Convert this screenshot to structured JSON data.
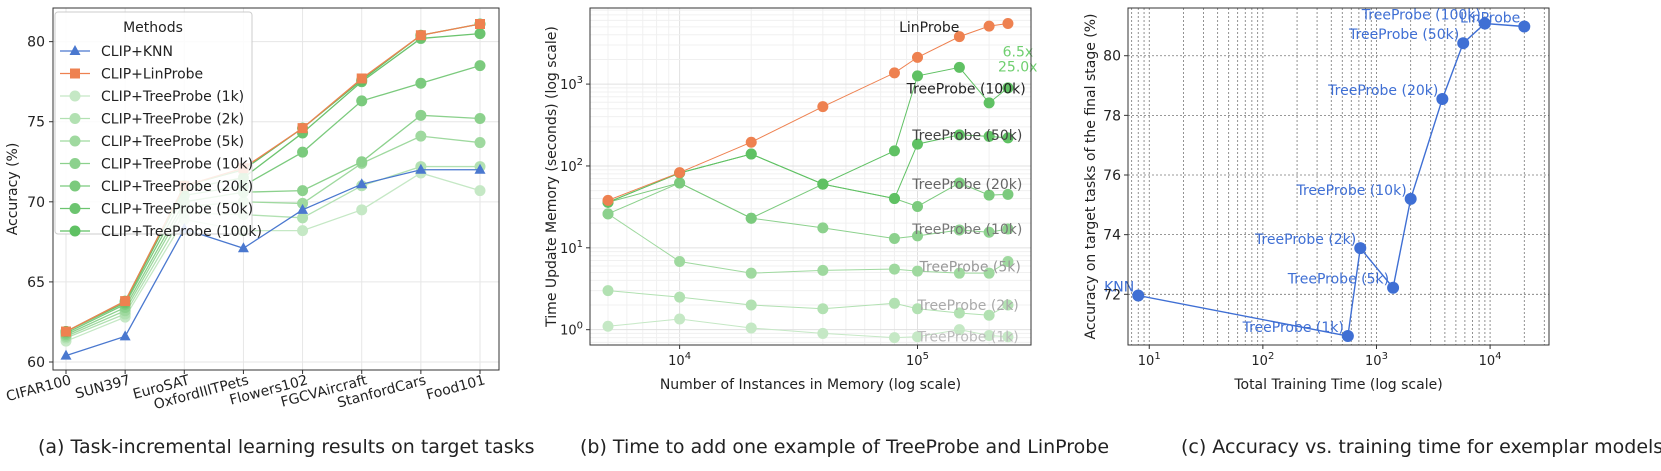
{
  "colors": {
    "knn": "#4a78cf",
    "linprobe": "#ee8150",
    "tree_dark": "#5fc163",
    "tree_mid": "#8fd38f",
    "tree_light": "#c5e8c5",
    "tree_ann_grey": "#999999",
    "green_ann": "#6fcf6f",
    "blue_curve": "#3f6fd4"
  },
  "captions": {
    "a": "(a) Task-incremental learning results on target tasks",
    "b": "(b) Time to add one example of TreeProbe and LinProbe",
    "c": "(c) Accuracy vs. training time for exemplar models"
  },
  "chart_data": [
    {
      "id": "a",
      "type": "line",
      "title": "",
      "xlabel": "",
      "ylabel": "Accuracy (%)",
      "ylim": [
        59.5,
        82.1
      ],
      "yticks": [
        60,
        65,
        70,
        75,
        80
      ],
      "grid": true,
      "legend_title": "Methods",
      "legend_position": "top-left",
      "categories": [
        "CIFAR100",
        "SUN397",
        "EuroSAT",
        "OxfordIIITPets",
        "Flowers102",
        "FGCVAircraft",
        "StanfordCars",
        "Food101"
      ],
      "series": [
        {
          "name": "CLIP+KNN",
          "color": "#4a78cf",
          "marker": "triangle",
          "values": [
            60.4,
            61.6,
            68.3,
            67.1,
            69.5,
            71.1,
            72.0,
            72.0
          ]
        },
        {
          "name": "CLIP+LinProbe",
          "color": "#ee8150",
          "marker": "square",
          "values": [
            61.9,
            63.8,
            71.0,
            72.1,
            74.6,
            77.7,
            80.4,
            81.1
          ]
        },
        {
          "name": "CLIP+TreeProbe (1k)",
          "color": "#c5e8c5",
          "marker": "circle",
          "values": [
            61.3,
            62.8,
            68.9,
            68.2,
            68.2,
            69.5,
            71.8,
            70.7
          ]
        },
        {
          "name": "CLIP+TreeProbe (2k)",
          "color": "#b2e1b2",
          "marker": "circle",
          "values": [
            61.5,
            63.0,
            69.3,
            69.2,
            69.0,
            71.0,
            72.2,
            72.2
          ]
        },
        {
          "name": "CLIP+TreeProbe (5k)",
          "color": "#9fd99f",
          "marker": "circle",
          "values": [
            61.6,
            63.2,
            69.7,
            70.0,
            69.9,
            72.4,
            74.1,
            73.7
          ]
        },
        {
          "name": "CLIP+TreeProbe (10k)",
          "color": "#8cd18d",
          "marker": "circle",
          "values": [
            61.7,
            63.4,
            70.0,
            70.6,
            70.7,
            72.5,
            75.4,
            75.2
          ]
        },
        {
          "name": "CLIP+TreeProbe (20k)",
          "color": "#7bca7d",
          "marker": "circle",
          "values": [
            61.8,
            63.6,
            70.4,
            71.0,
            73.1,
            76.3,
            77.4,
            78.5
          ]
        },
        {
          "name": "CLIP+TreeProbe (50k)",
          "color": "#6cc46f",
          "marker": "circle",
          "values": [
            61.9,
            63.7,
            70.8,
            71.5,
            74.3,
            77.5,
            80.2,
            80.5
          ]
        },
        {
          "name": "CLIP+TreeProbe (100k)",
          "color": "#5fc163",
          "marker": "circle",
          "values": [
            61.9,
            63.8,
            71.0,
            72.0,
            74.6,
            77.6,
            80.4,
            81.1
          ]
        }
      ]
    },
    {
      "id": "b",
      "type": "line",
      "title": "",
      "xlabel": "Number of Instances in Memory (log scale)",
      "ylabel": "Time Update Memory (seconds) (log scale)",
      "xscale": "log",
      "yscale": "log",
      "xlim": [
        4200,
        300000
      ],
      "ylim": [
        0.65,
        8500
      ],
      "xticks": [
        {
          "v": 10000,
          "b": "10",
          "e": "4"
        },
        {
          "v": 100000,
          "b": "10",
          "e": "5"
        }
      ],
      "yticks": [
        {
          "v": 1,
          "b": "10",
          "e": "0"
        },
        {
          "v": 10,
          "b": "10",
          "e": "1"
        },
        {
          "v": 100,
          "b": "10",
          "e": "2"
        },
        {
          "v": 1000,
          "b": "10",
          "e": "3"
        }
      ],
      "grid": true,
      "x": [
        5000,
        10000,
        20000,
        40000,
        80000,
        100000,
        150000,
        200000,
        240000
      ],
      "series": [
        {
          "name": "LinProbe",
          "color": "#ee8150",
          "values": [
            38,
            83,
            195,
            530,
            1370,
            2120,
            3800,
            5100,
            5500
          ]
        },
        {
          "name": "TreeProbe (100k)",
          "color": "#5fc163",
          "values": [
            36,
            82,
            140,
            60,
            153,
            1260,
            1600,
            590,
            900
          ]
        },
        {
          "name": "TreeProbe (50k)",
          "color": "#5fc163",
          "values": [
            36,
            82,
            140,
            60,
            40,
            185,
            240,
            230,
            220
          ]
        },
        {
          "name": "TreeProbe (20k)",
          "color": "#7bca7d",
          "values": [
            36,
            62,
            23,
            60,
            40,
            32,
            62,
            44,
            45
          ]
        },
        {
          "name": "TreeProbe (10k)",
          "color": "#8cd18d",
          "values": [
            26,
            62,
            23,
            17.5,
            13,
            14,
            16.5,
            15.5,
            17
          ]
        },
        {
          "name": "TreeProbe (5k)",
          "color": "#9fd99f",
          "values": [
            26,
            6.8,
            4.9,
            5.3,
            5.5,
            5.2,
            4.9,
            4.9,
            6.8
          ]
        },
        {
          "name": "TreeProbe (2k)",
          "color": "#b2e1b2",
          "values": [
            3.0,
            2.5,
            2.0,
            1.8,
            2.1,
            1.8,
            1.6,
            1.5,
            2.0
          ]
        },
        {
          "name": "TreeProbe (1k)",
          "color": "#c5e8c5",
          "values": [
            1.1,
            1.35,
            1.05,
            0.9,
            0.8,
            0.82,
            1.0,
            0.85,
            0.82
          ]
        }
      ],
      "annotations": [
        {
          "text": "LinProbe",
          "x": 150000,
          "y": 5000,
          "color": "#222222",
          "align": "end",
          "series": "LinProbe"
        },
        {
          "text": "6.5x",
          "x": 228000,
          "y": 2500,
          "color": "#6fcf6f",
          "align": "start"
        },
        {
          "text": "25.0x",
          "x": 218000,
          "y": 1650,
          "color": "#6fcf6f",
          "align": "start"
        },
        {
          "text": "TreeProbe (100k)",
          "x": 90000,
          "y": 880,
          "color": "#222222",
          "align": "start",
          "series": "TreeProbe (100k)"
        },
        {
          "text": "TreeProbe (50k)",
          "x": 95000,
          "y": 240,
          "color": "#444444",
          "align": "start",
          "series": "TreeProbe (50k)"
        },
        {
          "text": "TreeProbe (20k)",
          "x": 95000,
          "y": 60,
          "color": "#666666",
          "align": "start",
          "series": "TreeProbe (20k)"
        },
        {
          "text": "TreeProbe (10k)",
          "x": 95000,
          "y": 17,
          "color": "#777777",
          "align": "start",
          "series": "TreeProbe (10k)"
        },
        {
          "text": "TreeProbe (5k)",
          "x": 102000,
          "y": 5.9,
          "color": "#999999",
          "align": "start",
          "series": "TreeProbe (5k)"
        },
        {
          "text": "TreeProbe (2k)",
          "x": 100000,
          "y": 2.0,
          "color": "#aaaaaa",
          "align": "start",
          "series": "TreeProbe (2k)"
        },
        {
          "text": "TreeProbe (1k)",
          "x": 100000,
          "y": 0.83,
          "color": "#bbbbbb",
          "align": "start",
          "series": "TreeProbe (1k)"
        }
      ]
    },
    {
      "id": "c",
      "type": "line",
      "title": "",
      "xlabel": "Total Training Time (log scale)",
      "ylabel": "Accuracy on target tasks of the final stage (%)",
      "xscale": "log",
      "xlim": [
        6.5,
        33000
      ],
      "ylim": [
        70.3,
        81.6
      ],
      "xticks": [
        {
          "v": 10,
          "b": "10",
          "e": "1"
        },
        {
          "v": 100,
          "b": "10",
          "e": "2"
        },
        {
          "v": 1000,
          "b": "10",
          "e": "3"
        },
        {
          "v": 10000,
          "b": "10",
          "e": "4"
        }
      ],
      "yticks": [
        72,
        74,
        76,
        78,
        80
      ],
      "grid": true,
      "series": [
        {
          "name": "exemplar models",
          "color": "#3f6fd4",
          "points": [
            {
              "label": "KNN",
              "x": 8,
              "y": 71.96
            },
            {
              "label": "TreeProbe (1k)",
              "x": 560,
              "y": 70.6
            },
            {
              "label": "TreeProbe (2k)",
              "x": 720,
              "y": 73.55
            },
            {
              "label": "TreeProbe (5k)",
              "x": 1400,
              "y": 72.22
            },
            {
              "label": "TreeProbe (10k)",
              "x": 2000,
              "y": 75.2
            },
            {
              "label": "TreeProbe (20k)",
              "x": 3800,
              "y": 78.55
            },
            {
              "label": "TreeProbe (50k)",
              "x": 5800,
              "y": 80.42
            },
            {
              "label": "TreeProbe (100k)",
              "x": 9000,
              "y": 81.08
            },
            {
              "label": "LinProbe",
              "x": 20000,
              "y": 80.98
            }
          ]
        }
      ]
    }
  ]
}
